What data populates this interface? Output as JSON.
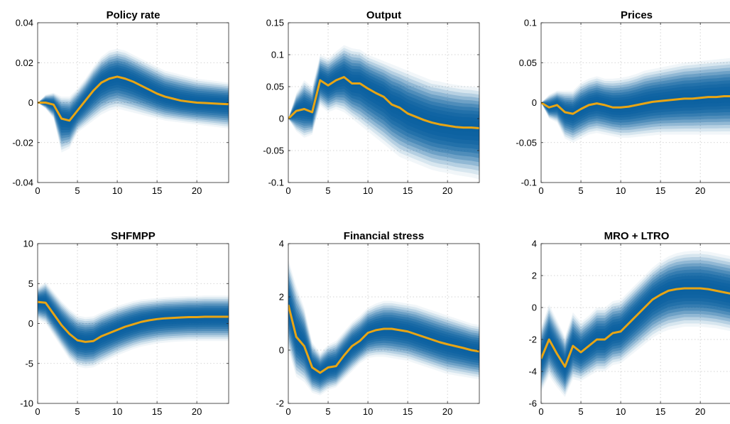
{
  "colors": {
    "median": "#e8a514",
    "band": "#0a60a0",
    "grid": "#c8c8c8",
    "axis": "#262626"
  },
  "chart_data": [
    {
      "type": "area",
      "title": "Policy rate",
      "xlim": [
        0,
        24
      ],
      "ylim": [
        -0.04,
        0.04
      ],
      "xticks": [
        0,
        5,
        10,
        15,
        20
      ],
      "yticks": [
        -0.04,
        -0.02,
        0,
        0.02,
        0.04
      ],
      "ytick_labels": [
        "-0.04",
        "-0.02",
        "0",
        "0.02",
        "0.04"
      ],
      "x": [
        0,
        1,
        2,
        3,
        4,
        5,
        6,
        7,
        8,
        9,
        10,
        11,
        12,
        13,
        14,
        15,
        16,
        17,
        18,
        19,
        20,
        21,
        22,
        23,
        24
      ],
      "median": [
        0,
        0,
        -0.001,
        -0.008,
        -0.009,
        -0.004,
        0.001,
        0.006,
        0.01,
        0.012,
        0.013,
        0.012,
        0.0105,
        0.0085,
        0.0065,
        0.0045,
        0.003,
        0.002,
        0.001,
        0.0005,
        0,
        -0.0002,
        -0.0004,
        -0.0006,
        -0.0008
      ],
      "lower": [
        0,
        -0.003,
        -0.008,
        -0.025,
        -0.023,
        -0.015,
        -0.012,
        -0.009,
        -0.006,
        -0.004,
        -0.003,
        -0.004,
        -0.005,
        -0.006,
        -0.007,
        -0.008,
        -0.009,
        -0.0095,
        -0.01,
        -0.0105,
        -0.011,
        -0.0115,
        -0.012,
        -0.0125,
        -0.013
      ],
      "upper": [
        0,
        0.004,
        0.005,
        0.003,
        0.003,
        0.007,
        0.012,
        0.018,
        0.023,
        0.026,
        0.027,
        0.026,
        0.024,
        0.022,
        0.02,
        0.018,
        0.016,
        0.015,
        0.014,
        0.013,
        0.012,
        0.0115,
        0.011,
        0.0105,
        0.01
      ]
    },
    {
      "type": "area",
      "title": "Output",
      "xlim": [
        0,
        24
      ],
      "ylim": [
        -0.1,
        0.15
      ],
      "xticks": [
        0,
        5,
        10,
        15,
        20
      ],
      "yticks": [
        -0.1,
        -0.05,
        0,
        0.05,
        0.1,
        0.15
      ],
      "ytick_labels": [
        "-0.1",
        "-0.05",
        "0",
        "0.05",
        "0.1",
        "0.15"
      ],
      "x": [
        0,
        1,
        2,
        3,
        4,
        5,
        6,
        7,
        8,
        9,
        10,
        11,
        12,
        13,
        14,
        15,
        16,
        17,
        18,
        19,
        20,
        21,
        22,
        23,
        24
      ],
      "median": [
        0,
        0.012,
        0.015,
        0.01,
        0.06,
        0.052,
        0.06,
        0.065,
        0.055,
        0.055,
        0.047,
        0.04,
        0.034,
        0.022,
        0.017,
        0.008,
        0.003,
        -0.002,
        -0.006,
        -0.009,
        -0.011,
        -0.013,
        -0.014,
        -0.014,
        -0.015
      ],
      "lower": [
        0,
        -0.02,
        -0.03,
        -0.025,
        0.02,
        0.01,
        0.015,
        0.01,
        0.0,
        -0.01,
        -0.02,
        -0.03,
        -0.04,
        -0.05,
        -0.06,
        -0.065,
        -0.07,
        -0.075,
        -0.08,
        -0.083,
        -0.085,
        -0.088,
        -0.09,
        -0.092,
        -0.095
      ],
      "upper": [
        0,
        0.04,
        0.06,
        0.05,
        0.1,
        0.095,
        0.105,
        0.115,
        0.11,
        0.108,
        0.1,
        0.095,
        0.09,
        0.085,
        0.08,
        0.075,
        0.07,
        0.065,
        0.06,
        0.058,
        0.055,
        0.053,
        0.051,
        0.05,
        0.048
      ]
    },
    {
      "type": "area",
      "title": "Prices",
      "xlim": [
        0,
        24
      ],
      "ylim": [
        -0.1,
        0.1
      ],
      "xticks": [
        0,
        5,
        10,
        15,
        20
      ],
      "yticks": [
        -0.1,
        -0.05,
        0,
        0.05,
        0.1
      ],
      "ytick_labels": [
        "-0.1",
        "-0.05",
        "0",
        "0.05",
        "0.1"
      ],
      "x": [
        0,
        1,
        2,
        3,
        4,
        5,
        6,
        7,
        8,
        9,
        10,
        11,
        12,
        13,
        14,
        15,
        16,
        17,
        18,
        19,
        20,
        21,
        22,
        23,
        24
      ],
      "median": [
        0,
        -0.006,
        -0.003,
        -0.012,
        -0.014,
        -0.008,
        -0.003,
        -0.001,
        -0.003,
        -0.006,
        -0.006,
        -0.005,
        -0.003,
        -0.001,
        0.001,
        0.002,
        0.003,
        0.004,
        0.005,
        0.005,
        0.006,
        0.007,
        0.007,
        0.008,
        0.008
      ],
      "lower": [
        0,
        -0.02,
        -0.025,
        -0.045,
        -0.05,
        -0.045,
        -0.04,
        -0.038,
        -0.04,
        -0.042,
        -0.044,
        -0.044,
        -0.043,
        -0.042,
        -0.041,
        -0.04,
        -0.04,
        -0.04,
        -0.04,
        -0.04,
        -0.04,
        -0.04,
        -0.04,
        -0.04,
        -0.04
      ],
      "upper": [
        0,
        0.01,
        0.015,
        0.015,
        0.015,
        0.025,
        0.03,
        0.033,
        0.03,
        0.03,
        0.031,
        0.033,
        0.036,
        0.04,
        0.042,
        0.044,
        0.046,
        0.048,
        0.05,
        0.051,
        0.052,
        0.053,
        0.054,
        0.055,
        0.056
      ]
    },
    {
      "type": "area",
      "title": "SHFMPP",
      "xlim": [
        0,
        24
      ],
      "ylim": [
        -10,
        10
      ],
      "xticks": [
        0,
        5,
        10,
        15,
        20
      ],
      "yticks": [
        -10,
        -5,
        0,
        5,
        10
      ],
      "ytick_labels": [
        "-10",
        "-5",
        "0",
        "5",
        "10"
      ],
      "x": [
        0,
        1,
        2,
        3,
        4,
        5,
        6,
        7,
        8,
        9,
        10,
        11,
        12,
        13,
        14,
        15,
        16,
        17,
        18,
        19,
        20,
        21,
        22,
        23,
        24
      ],
      "median": [
        2.7,
        2.6,
        1.2,
        -0.2,
        -1.3,
        -2.1,
        -2.3,
        -2.2,
        -1.6,
        -1.2,
        -0.8,
        -0.4,
        -0.1,
        0.2,
        0.4,
        0.55,
        0.65,
        0.7,
        0.75,
        0.8,
        0.8,
        0.85,
        0.85,
        0.85,
        0.85
      ],
      "lower": [
        0.5,
        0.0,
        -1.5,
        -3.0,
        -4.5,
        -5.4,
        -5.6,
        -5.5,
        -5.0,
        -4.5,
        -4.0,
        -3.6,
        -3.2,
        -2.9,
        -2.7,
        -2.5,
        -2.4,
        -2.3,
        -2.25,
        -2.2,
        -2.2,
        -2.2,
        -2.2,
        -2.2,
        -2.2
      ],
      "upper": [
        4.5,
        5.2,
        4.0,
        2.8,
        1.8,
        1.0,
        0.8,
        0.9,
        1.4,
        1.8,
        2.2,
        2.5,
        2.8,
        3.0,
        3.1,
        3.2,
        3.3,
        3.35,
        3.4,
        3.45,
        3.45,
        3.5,
        3.5,
        3.5,
        3.5
      ]
    },
    {
      "type": "area",
      "title": "Financial stress",
      "xlim": [
        0,
        24
      ],
      "ylim": [
        -2,
        4
      ],
      "xticks": [
        0,
        5,
        10,
        15,
        20
      ],
      "yticks": [
        -2,
        0,
        2,
        4
      ],
      "ytick_labels": [
        "-2",
        "0",
        "2",
        "4"
      ],
      "x": [
        0,
        1,
        2,
        3,
        4,
        5,
        6,
        7,
        8,
        9,
        10,
        11,
        12,
        13,
        14,
        15,
        16,
        17,
        18,
        19,
        20,
        21,
        22,
        23,
        24
      ],
      "median": [
        1.7,
        0.5,
        0.15,
        -0.65,
        -0.85,
        -0.65,
        -0.6,
        -0.2,
        0.15,
        0.35,
        0.65,
        0.75,
        0.8,
        0.8,
        0.75,
        0.7,
        0.6,
        0.5,
        0.4,
        0.3,
        0.22,
        0.15,
        0.08,
        0.0,
        -0.05
      ],
      "lower": [
        0.0,
        -1.0,
        -1.2,
        -1.6,
        -1.7,
        -1.5,
        -1.4,
        -1.1,
        -0.8,
        -0.5,
        -0.3,
        -0.25,
        -0.25,
        -0.3,
        -0.35,
        -0.4,
        -0.5,
        -0.6,
        -0.7,
        -0.8,
        -0.9,
        -0.95,
        -1.0,
        -1.05,
        -1.1
      ],
      "upper": [
        3.4,
        2.4,
        1.6,
        0.3,
        -0.1,
        0.2,
        0.35,
        0.7,
        1.05,
        1.3,
        1.6,
        1.75,
        1.85,
        1.85,
        1.8,
        1.75,
        1.7,
        1.6,
        1.5,
        1.4,
        1.3,
        1.2,
        1.1,
        1.0,
        0.95
      ]
    },
    {
      "type": "area",
      "title": "MRO + LTRO",
      "xlim": [
        0,
        24
      ],
      "ylim": [
        -6,
        4
      ],
      "xticks": [
        0,
        5,
        10,
        15,
        20
      ],
      "yticks": [
        -6,
        -4,
        -2,
        0,
        2,
        4
      ],
      "ytick_labels": [
        "-6",
        "-4",
        "-2",
        "0",
        "2",
        "4"
      ],
      "x": [
        0,
        1,
        2,
        3,
        4,
        5,
        6,
        7,
        8,
        9,
        10,
        11,
        12,
        13,
        14,
        15,
        16,
        17,
        18,
        19,
        20,
        21,
        22,
        23,
        24
      ],
      "median": [
        -3.2,
        -2.0,
        -2.9,
        -3.7,
        -2.4,
        -2.8,
        -2.4,
        -2.0,
        -2.0,
        -1.6,
        -1.5,
        -1.0,
        -0.5,
        0.0,
        0.5,
        0.8,
        1.05,
        1.15,
        1.2,
        1.2,
        1.2,
        1.15,
        1.05,
        0.95,
        0.85
      ],
      "lower": [
        -5.3,
        -4.3,
        -5.0,
        -5.6,
        -4.5,
        -4.6,
        -4.3,
        -4.0,
        -4.0,
        -3.6,
        -3.5,
        -3.1,
        -2.7,
        -2.3,
        -1.9,
        -1.6,
        -1.4,
        -1.3,
        -1.2,
        -1.2,
        -1.2,
        -1.25,
        -1.3,
        -1.4,
        -1.5
      ],
      "upper": [
        -1.2,
        0.2,
        -0.8,
        -1.8,
        -0.3,
        -0.9,
        -0.5,
        0.0,
        0.0,
        0.4,
        0.5,
        1.0,
        1.5,
        2.0,
        2.5,
        2.9,
        3.2,
        3.4,
        3.5,
        3.55,
        3.55,
        3.5,
        3.4,
        3.3,
        3.2
      ]
    }
  ]
}
